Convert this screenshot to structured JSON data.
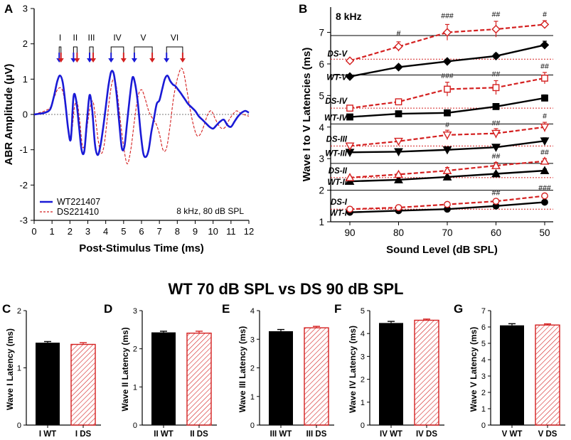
{
  "figure": {
    "center_title": "WT 70 dB SPL vs DS 90 dB SPL"
  },
  "colors": {
    "wt": "#1a1ad6",
    "ds": "#d42020",
    "black": "#000000",
    "red_marker": "#d42020"
  },
  "chart_data": [
    {
      "panel": "A",
      "type": "line",
      "xlabel": "Post-Stimulus Time (ms)",
      "ylabel": "ABR Amplitude (μV)",
      "xlim": [
        0,
        12
      ],
      "ylim": [
        -3,
        3
      ],
      "xticks": [
        "0",
        "1",
        "2",
        "3",
        "4",
        "5",
        "6",
        "7",
        "8",
        "9",
        "10",
        "11",
        "12"
      ],
      "yticks": [
        "-3",
        "-2",
        "-1",
        "0",
        "1",
        "2",
        "3"
      ],
      "annotation": "8 kHz, 80 dB SPL",
      "wave_labels": [
        "I",
        "II",
        "III",
        "IV",
        "V",
        "VI"
      ],
      "wt_peak_times": [
        1.4,
        2.2,
        3.1,
        4.3,
        5.6,
        7.4
      ],
      "ds_peak_times": [
        1.5,
        2.4,
        3.3,
        5.0,
        6.6,
        8.3
      ],
      "series": [
        {
          "name": "WT221407",
          "style": "solid",
          "x": [
            0,
            0.3,
            0.6,
            0.9,
            1.1,
            1.3,
            1.45,
            1.6,
            1.75,
            1.9,
            2.05,
            2.2,
            2.35,
            2.5,
            2.65,
            2.8,
            2.95,
            3.1,
            3.25,
            3.4,
            3.55,
            3.7,
            3.85,
            4.0,
            4.15,
            4.3,
            4.45,
            4.6,
            4.75,
            4.9,
            5.05,
            5.2,
            5.35,
            5.5,
            5.65,
            5.8,
            5.95,
            6.1,
            6.25,
            6.4,
            6.55,
            6.7,
            6.85,
            7.0,
            7.15,
            7.3,
            7.45,
            7.6,
            7.75,
            7.9,
            8.05,
            8.2,
            8.4,
            8.6,
            8.8,
            9.0,
            9.2,
            9.4,
            9.6,
            9.8,
            10.0,
            10.2,
            10.4,
            10.6,
            10.8,
            11.0,
            11.2,
            11.4,
            11.6,
            11.8,
            12.0
          ],
          "values": [
            0,
            0.02,
            0.05,
            0.15,
            0.5,
            0.95,
            1.1,
            0.9,
            0.3,
            -0.4,
            -0.7,
            0.5,
            0.4,
            -0.3,
            -1.0,
            -1.05,
            -0.2,
            0.55,
            0.1,
            -0.85,
            -1.15,
            -0.9,
            -0.4,
            0.2,
            0.8,
            1.2,
            1.15,
            0.6,
            -0.2,
            -0.95,
            -0.9,
            -0.2,
            0.5,
            1.05,
            0.85,
            0.3,
            -0.5,
            -1.1,
            -1.2,
            -1.0,
            -0.5,
            -0.1,
            0.3,
            0.4,
            0.7,
            1.0,
            1.1,
            0.95,
            0.85,
            0.8,
            0.7,
            0.6,
            0.45,
            0.3,
            0.2,
            0.1,
            -0.05,
            -0.15,
            -0.25,
            -0.35,
            -0.4,
            -0.3,
            -0.2,
            -0.15,
            -0.3,
            -0.35,
            -0.2,
            -0.05,
            0.05,
            0.1,
            0.05
          ]
        },
        {
          "name": "DS221410",
          "style": "dashed",
          "x": [
            0,
            0.3,
            0.6,
            0.9,
            1.1,
            1.3,
            1.5,
            1.65,
            1.8,
            1.95,
            2.1,
            2.25,
            2.4,
            2.55,
            2.7,
            2.85,
            3.0,
            3.15,
            3.3,
            3.45,
            3.6,
            3.75,
            3.9,
            4.05,
            4.2,
            4.35,
            4.5,
            4.65,
            4.8,
            5.0,
            5.2,
            5.4,
            5.6,
            5.8,
            6.0,
            6.2,
            6.4,
            6.6,
            6.8,
            7.0,
            7.2,
            7.4,
            7.6,
            7.8,
            8.0,
            8.2,
            8.35,
            8.5,
            8.7,
            8.9,
            9.1,
            9.3,
            9.5,
            9.7,
            9.9,
            10.1,
            10.3,
            10.5,
            10.7,
            10.9,
            11.1,
            11.3,
            11.5,
            11.7,
            12.0
          ],
          "values": [
            0,
            0.05,
            0.1,
            0.2,
            0.45,
            0.7,
            0.75,
            0.55,
            0.0,
            -0.6,
            -0.5,
            0.2,
            0.35,
            -0.2,
            -0.9,
            -0.8,
            -0.2,
            0.25,
            0.35,
            -0.2,
            -0.8,
            -1.1,
            -0.9,
            -0.3,
            0.4,
            0.9,
            1.0,
            0.6,
            -0.1,
            -0.9,
            -1.4,
            -1.0,
            -0.2,
            0.5,
            0.7,
            0.45,
            0.1,
            -0.1,
            -0.25,
            -0.55,
            -1.0,
            -0.95,
            -0.3,
            0.5,
            1.0,
            1.3,
            1.2,
            0.8,
            0.2,
            -0.3,
            -0.6,
            -0.55,
            -0.3,
            0.0,
            0.1,
            -0.1,
            -0.3,
            -0.4,
            -0.35,
            -0.15,
            0.0,
            0.1,
            0.05,
            0.0,
            -0.05
          ]
        }
      ]
    },
    {
      "panel": "B",
      "type": "line",
      "title": "8 kHz",
      "xlabel": "Sound Level (dB SPL)",
      "ylabel": "Wave I to V Latencies (ms)",
      "categories": [
        90,
        80,
        70,
        60,
        50
      ],
      "xticks": [
        "90",
        "80",
        "70",
        "60",
        "50"
      ],
      "yticks": [
        "1",
        "2",
        "3",
        "4",
        "5",
        "6",
        "7"
      ],
      "ylim": [
        1,
        7.8
      ],
      "series": [
        {
          "name": "WT-V",
          "group": "WT",
          "marker": "diamond",
          "values": [
            5.6,
            5.9,
            6.08,
            6.25,
            6.6
          ],
          "err": [
            0.05,
            0.05,
            0.06,
            0.08,
            0.12
          ]
        },
        {
          "name": "DS-V",
          "group": "DS",
          "marker": "diamond",
          "values": [
            6.1,
            6.55,
            7.0,
            7.1,
            7.25
          ],
          "err": [
            0.05,
            0.15,
            0.25,
            0.25,
            0.12
          ]
        },
        {
          "name": "WT-IV",
          "group": "WT",
          "marker": "square",
          "values": [
            4.32,
            4.42,
            4.45,
            4.65,
            4.92
          ],
          "err": [
            0.05,
            0.04,
            0.04,
            0.05,
            0.1
          ]
        },
        {
          "name": "DS-IV",
          "group": "DS",
          "marker": "square",
          "values": [
            4.6,
            4.8,
            5.2,
            5.25,
            5.55
          ],
          "err": [
            0.04,
            0.08,
            0.22,
            0.22,
            0.18
          ]
        },
        {
          "name": "WT-III",
          "group": "WT",
          "marker": "tri_down",
          "values": [
            3.2,
            3.22,
            3.28,
            3.36,
            3.56
          ],
          "err": [
            0.03,
            0.03,
            0.04,
            0.05,
            0.1
          ]
        },
        {
          "name": "DS-III",
          "group": "DS",
          "marker": "tri_down",
          "values": [
            3.4,
            3.55,
            3.75,
            3.8,
            4.0
          ],
          "err": [
            0.03,
            0.05,
            0.15,
            0.15,
            0.15
          ]
        },
        {
          "name": "WT-II",
          "group": "WT",
          "marker": "tri_up",
          "values": [
            2.28,
            2.33,
            2.42,
            2.52,
            2.62
          ],
          "err": [
            0.03,
            0.03,
            0.04,
            0.05,
            0.05
          ]
        },
        {
          "name": "DS-II",
          "group": "DS",
          "marker": "tri_up",
          "values": [
            2.4,
            2.5,
            2.62,
            2.78,
            2.92
          ],
          "err": [
            0.03,
            0.04,
            0.1,
            0.1,
            0.08
          ]
        },
        {
          "name": "WT-I",
          "group": "WT",
          "marker": "circle",
          "values": [
            1.3,
            1.35,
            1.4,
            1.5,
            1.62
          ],
          "err": [
            0.02,
            0.02,
            0.03,
            0.04,
            0.04
          ]
        },
        {
          "name": "DS-I",
          "group": "DS",
          "marker": "circle",
          "values": [
            1.4,
            1.45,
            1.55,
            1.65,
            1.82
          ],
          "err": [
            0.02,
            0.03,
            0.04,
            0.05,
            0.05
          ]
        }
      ],
      "series_labels": {
        "WT-V": "WT-V",
        "DS-V": "DS-V",
        "WT-IV": "WT-IV",
        "DS-IV": "DS-IV",
        "WT-III": "WT-III",
        "DS-III": "DS-III",
        "WT-II": "WT-II",
        "DS-II": "DS-II",
        "WT-I": "WT-I",
        "DS-I": "DS-I"
      },
      "baselines": {
        "I": 1.4,
        "II": 2.4,
        "III": 3.4,
        "IV": 4.6,
        "V": 6.15
      },
      "separators": [
        6.9,
        5.65,
        4.1,
        2.85,
        2.0
      ],
      "significance": [
        {
          "x": 80,
          "y": 6.9,
          "text": "#"
        },
        {
          "x": 70,
          "y": 7.45,
          "text": "###"
        },
        {
          "x": 60,
          "y": 7.5,
          "text": "##"
        },
        {
          "x": 50,
          "y": 7.5,
          "text": "#"
        },
        {
          "x": 70,
          "y": 5.55,
          "text": "###"
        },
        {
          "x": 60,
          "y": 5.6,
          "text": "##"
        },
        {
          "x": 50,
          "y": 5.85,
          "text": "##"
        },
        {
          "x": 70,
          "y": 4.0,
          "text": "#"
        },
        {
          "x": 60,
          "y": 4.05,
          "text": "##"
        },
        {
          "x": 50,
          "y": 4.28,
          "text": "#"
        },
        {
          "x": 60,
          "y": 3.0,
          "text": "##"
        },
        {
          "x": 50,
          "y": 3.13,
          "text": "##"
        },
        {
          "x": 60,
          "y": 1.85,
          "text": "##"
        },
        {
          "x": 50,
          "y": 2.0,
          "text": "###"
        }
      ]
    },
    {
      "panel": "C",
      "type": "bar",
      "ylabel": "Wave I Latency (ms)",
      "categories": [
        "I WT",
        "I DS"
      ],
      "values": [
        1.44,
        1.41
      ],
      "err": [
        0.02,
        0.03
      ],
      "ylim": [
        0,
        2
      ],
      "yticks": [
        "0",
        "1",
        "2"
      ],
      "ytick_values": [
        0,
        1,
        2
      ]
    },
    {
      "panel": "D",
      "type": "bar",
      "ylabel": "Wave II Latency (ms)",
      "categories": [
        "II WT",
        "II DS"
      ],
      "values": [
        2.43,
        2.41
      ],
      "err": [
        0.03,
        0.05
      ],
      "ylim": [
        0,
        3
      ],
      "yticks": [
        "0",
        "1",
        "2",
        "3"
      ],
      "ytick_values": [
        0,
        1,
        2,
        3
      ]
    },
    {
      "panel": "E",
      "type": "bar",
      "ylabel": "Wave III Latency (ms)",
      "categories": [
        "III WT",
        "III DS"
      ],
      "values": [
        3.28,
        3.4
      ],
      "err": [
        0.06,
        0.05
      ],
      "ylim": [
        0,
        4
      ],
      "yticks": [
        "0",
        "1",
        "2",
        "3",
        "4"
      ],
      "ytick_values": [
        0,
        1,
        2,
        3,
        4
      ]
    },
    {
      "panel": "F",
      "type": "bar",
      "ylabel": "Wave IV Latency (ms)",
      "categories": [
        "IV WT",
        "IV DS"
      ],
      "values": [
        4.46,
        4.58
      ],
      "err": [
        0.07,
        0.05
      ],
      "ylim": [
        0,
        5
      ],
      "yticks": [
        "0",
        "1",
        "2",
        "3",
        "4",
        "5"
      ],
      "ytick_values": [
        0,
        1,
        2,
        3,
        4,
        5
      ]
    },
    {
      "panel": "G",
      "type": "bar",
      "ylabel": "Wave V Latency (ms)",
      "categories": [
        "V WT",
        "V DS"
      ],
      "values": [
        6.1,
        6.12
      ],
      "err": [
        0.1,
        0.07
      ],
      "ylim": [
        0,
        7
      ],
      "yticks": [
        "0",
        "1",
        "2",
        "3",
        "4",
        "5",
        "6",
        "7"
      ],
      "ytick_values": [
        0,
        1,
        2,
        3,
        4,
        5,
        6,
        7
      ]
    }
  ]
}
